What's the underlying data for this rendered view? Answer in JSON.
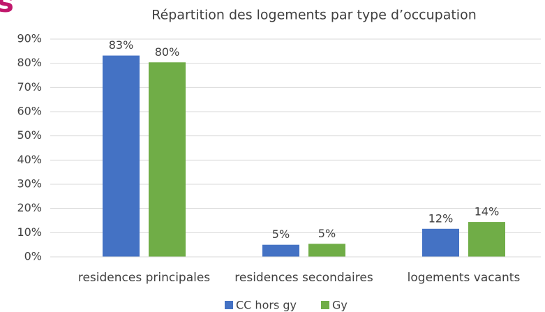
{
  "chart_data": {
    "type": "bar",
    "annotation": "s",
    "title": "Répartition des logements par type d’occupation",
    "categories": [
      "residences principales",
      "residences secondaires",
      "logements vacants"
    ],
    "series": [
      {
        "name": "CC hors gy",
        "color": "#4472c4",
        "values": [
          83.2,
          5.0,
          11.6
        ],
        "value_labels": [
          "83%",
          "5%",
          "12%"
        ]
      },
      {
        "name": "Gy",
        "color": "#70ad47",
        "values": [
          80.4,
          5.4,
          14.4
        ],
        "value_labels": [
          "80%",
          "5%",
          "14%"
        ]
      }
    ],
    "ylim": [
      0,
      90
    ],
    "yticks": [
      {
        "value": 0,
        "label": "0%"
      },
      {
        "value": 10,
        "label": "10%"
      },
      {
        "value": 20,
        "label": "20%"
      },
      {
        "value": 30,
        "label": "30%"
      },
      {
        "value": 40,
        "label": "40%"
      },
      {
        "value": 50,
        "label": "50%"
      },
      {
        "value": 60,
        "label": "60%"
      },
      {
        "value": 70,
        "label": "70%"
      },
      {
        "value": 80,
        "label": "80%"
      },
      {
        "value": 90,
        "label": "90%"
      }
    ],
    "grid": true,
    "legend": "bottom"
  }
}
